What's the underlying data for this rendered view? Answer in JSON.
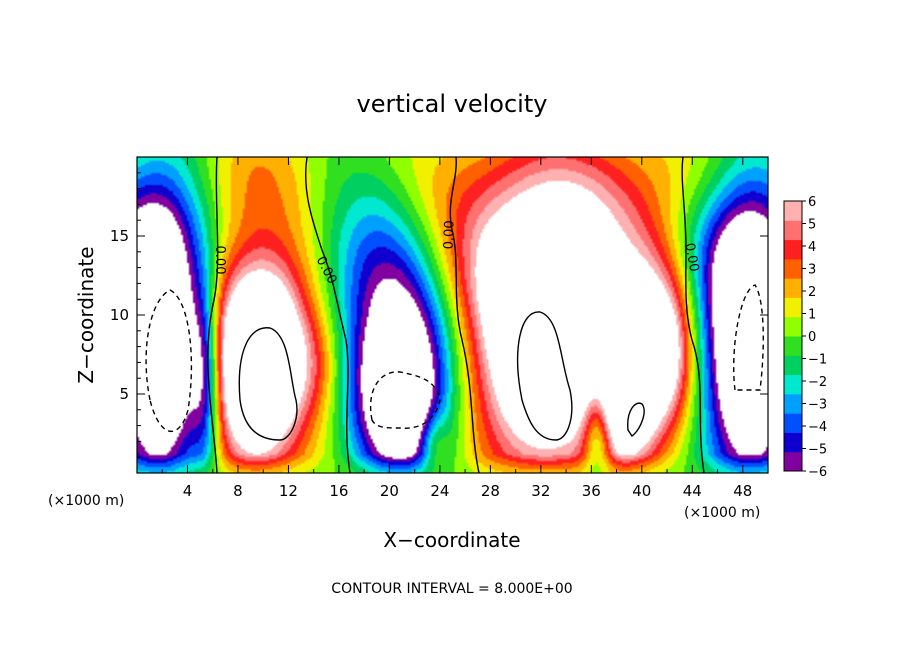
{
  "chart_data": {
    "type": "heatmap",
    "title": "vertical velocity",
    "xlabel": "X−coordinate",
    "ylabel": "Z−coordinate",
    "x_unit": "(×1000 m)",
    "xlim": [
      0,
      50
    ],
    "ylim": [
      0,
      20
    ],
    "x_ticks": [
      4,
      8,
      12,
      16,
      20,
      24,
      28,
      32,
      36,
      40,
      44,
      48
    ],
    "x_tick_labels": [
      "4",
      "8",
      "12",
      "16",
      "20",
      "24",
      "28",
      "32",
      "36",
      "40",
      "44",
      "48"
    ],
    "y_ticks": [
      5,
      10,
      15
    ],
    "y_tick_labels": [
      "5",
      "10",
      "15"
    ],
    "footer": "CONTOUR INTERVAL = 8.000E+00",
    "contour_label": "0.00",
    "colorbar": {
      "min": -6,
      "max": 6,
      "ticks": [
        6,
        5,
        4,
        3,
        2,
        1,
        0,
        -1,
        -2,
        -3,
        -4,
        -5,
        -6
      ],
      "tick_labels": [
        "6",
        "5",
        "4",
        "3",
        "2",
        "1",
        "0",
        "−1",
        "−2",
        "−3",
        "−4",
        "−5",
        "−6"
      ],
      "colors": [
        "#8000a0",
        "#1000d0",
        "#0050ff",
        "#00a0ff",
        "#00e8d0",
        "#00d060",
        "#30e020",
        "#90ff00",
        "#f0f000",
        "#ffb000",
        "#ff6000",
        "#ff2020",
        "#ff7070",
        "#ffb0b0"
      ],
      "saturated_color": "#ffffff"
    },
    "updrafts": [
      {
        "x": 9.0,
        "z": 6.5,
        "amp": 11,
        "sx": 2.6,
        "sz": 4.6
      },
      {
        "x": 11.5,
        "z": 9.0,
        "amp": 4,
        "sx": 2.4,
        "sz": 4.0
      },
      {
        "x": 14.5,
        "z": 7.0,
        "amp": 2,
        "sx": 1.6,
        "sz": 2.5
      },
      {
        "x": 32.0,
        "z": 7.8,
        "amp": 11,
        "sx": 3.8,
        "sz": 5.6
      },
      {
        "x": 33.5,
        "z": 13.0,
        "amp": 4,
        "sx": 6.5,
        "sz": 3.2
      },
      {
        "x": 38.8,
        "z": 4.8,
        "amp": 8,
        "sx": 1.8,
        "sz": 3.2
      },
      {
        "x": 41.0,
        "z": 8.0,
        "amp": 6,
        "sx": 2.2,
        "sz": 4.0
      },
      {
        "x": 42.3,
        "z": 7.0,
        "amp": 2,
        "sx": 1.2,
        "sz": 3.0
      },
      {
        "x": 23.5,
        "z": 2.0,
        "amp": 3,
        "sx": 0.8,
        "sz": 1.5
      },
      {
        "x": 9.0,
        "z": 18.5,
        "amp": 2,
        "sx": 3.0,
        "sz": 3.0
      },
      {
        "x": 34.0,
        "z": 18.0,
        "amp": 3,
        "sx": 8.0,
        "sz": 3.0
      }
    ],
    "downdrafts": [
      {
        "x": 1.8,
        "z": 8.0,
        "amp": 12,
        "sx": 2.6,
        "sz": 6.5
      },
      {
        "x": 5.4,
        "z": 6.0,
        "amp": 5,
        "sx": 0.8,
        "sz": 4.2
      },
      {
        "x": 21.0,
        "z": 4.8,
        "amp": 11,
        "sx": 2.6,
        "sz": 4.0
      },
      {
        "x": 20.0,
        "z": 11.0,
        "amp": 4,
        "sx": 3.0,
        "sz": 4.0
      },
      {
        "x": 17.5,
        "z": 14.0,
        "amp": 2,
        "sx": 3.0,
        "sz": 4.0
      },
      {
        "x": 48.5,
        "z": 8.0,
        "amp": 12,
        "sx": 2.6,
        "sz": 6.5
      },
      {
        "x": 47.5,
        "z": 14.5,
        "amp": 3,
        "sx": 4.0,
        "sz": 3.0
      },
      {
        "x": 36.5,
        "z": 2.5,
        "amp": 5,
        "sx": 0.8,
        "sz": 2.2
      },
      {
        "x": 0.5,
        "z": 15.0,
        "amp": 3,
        "sx": 3.0,
        "sz": 3.0
      }
    ]
  }
}
